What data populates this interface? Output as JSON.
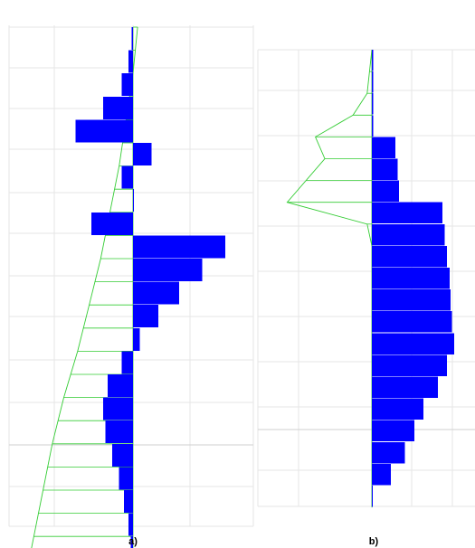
{
  "colors": {
    "bar": "#0000ff",
    "curve": "#33cc33",
    "grid": "#e6e6e6"
  },
  "chart_data": [
    {
      "type": "bar",
      "orientation": "horizontal",
      "panel_label": "a)",
      "grid": true,
      "bars": [
        {
          "index": 1,
          "value": -0.5
        },
        {
          "index": 2,
          "value": -2
        },
        {
          "index": 3,
          "value": -5
        },
        {
          "index": 4,
          "value": -13
        },
        {
          "index": 5,
          "value": -25
        },
        {
          "index": 6,
          "value": 8
        },
        {
          "index": 7,
          "value": -5
        },
        {
          "index": 8,
          "value": 0
        },
        {
          "index": 9,
          "value": -18
        },
        {
          "index": 10,
          "value": 40
        },
        {
          "index": 11,
          "value": 30
        },
        {
          "index": 12,
          "value": 20
        },
        {
          "index": 13,
          "value": 11
        },
        {
          "index": 14,
          "value": 3
        },
        {
          "index": 15,
          "value": -5
        },
        {
          "index": 16,
          "value": -11
        },
        {
          "index": 17,
          "value": -13
        },
        {
          "index": 18,
          "value": -12
        },
        {
          "index": 19,
          "value": -9
        },
        {
          "index": 20,
          "value": -6
        },
        {
          "index": 21,
          "value": -4
        },
        {
          "index": 22,
          "value": -2
        },
        {
          "index": 23,
          "value": -1
        }
      ],
      "curve": [
        {
          "index": 0,
          "value": 2
        },
        {
          "index": 2,
          "value": 0
        },
        {
          "index": 4,
          "value": -3
        },
        {
          "index": 6,
          "value": -6
        },
        {
          "index": 8,
          "value": -10
        },
        {
          "index": 10,
          "value": -14
        },
        {
          "index": 12,
          "value": -19
        },
        {
          "index": 14,
          "value": -24
        },
        {
          "index": 16,
          "value": -30
        },
        {
          "index": 18,
          "value": -35
        },
        {
          "index": 20,
          "value": -39
        },
        {
          "index": 22,
          "value": -43
        },
        {
          "index": 23,
          "value": -45
        }
      ]
    },
    {
      "type": "bar",
      "orientation": "horizontal",
      "panel_label": "b)",
      "grid": true,
      "bars": [
        {
          "index": 1,
          "value": 0.5
        },
        {
          "index": 2,
          "value": 0.5
        },
        {
          "index": 3,
          "value": 0.5
        },
        {
          "index": 4,
          "value": 0.5
        },
        {
          "index": 5,
          "value": 10
        },
        {
          "index": 6,
          "value": 11
        },
        {
          "index": 7,
          "value": 11.5
        },
        {
          "index": 8,
          "value": 30
        },
        {
          "index": 9,
          "value": 31
        },
        {
          "index": 10,
          "value": 32
        },
        {
          "index": 11,
          "value": 33
        },
        {
          "index": 12,
          "value": 33.5
        },
        {
          "index": 13,
          "value": 34
        },
        {
          "index": 14,
          "value": 35
        },
        {
          "index": 15,
          "value": 32
        },
        {
          "index": 16,
          "value": 28
        },
        {
          "index": 17,
          "value": 22
        },
        {
          "index": 18,
          "value": 18
        },
        {
          "index": 19,
          "value": 14
        },
        {
          "index": 20,
          "value": 8
        },
        {
          "index": 21,
          "value": 0.3
        }
      ],
      "curve": [
        {
          "index": 0,
          "value": 0
        },
        {
          "index": 2,
          "value": -2
        },
        {
          "index": 3,
          "value": -8
        },
        {
          "index": 4,
          "value": -24
        },
        {
          "index": 5,
          "value": -20
        },
        {
          "index": 7,
          "value": -36
        },
        {
          "index": 8,
          "value": -2
        },
        {
          "index": 9,
          "value": 0
        }
      ]
    }
  ]
}
